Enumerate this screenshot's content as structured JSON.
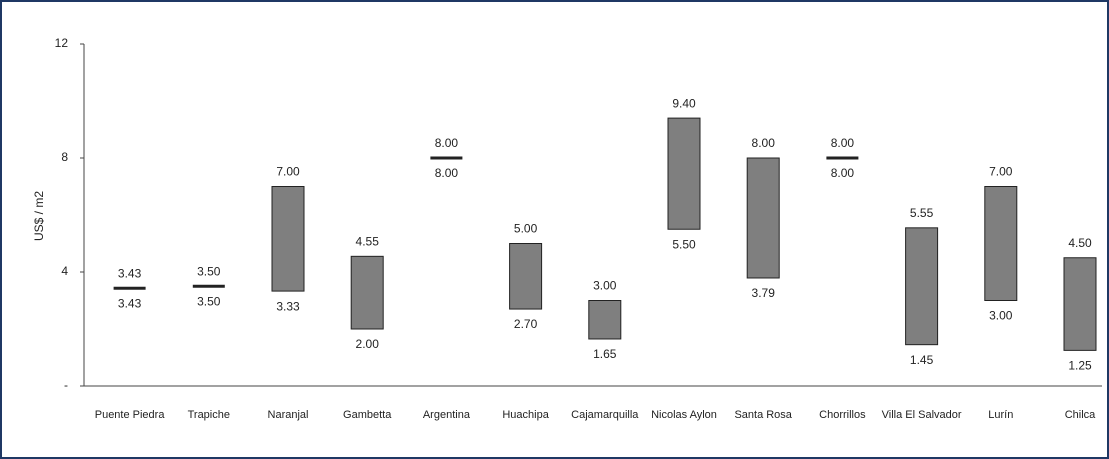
{
  "chart_data": {
    "type": "floating_bar",
    "y_label": "US$ / m2",
    "categories": [
      "Puente Piedra",
      "Trapiche",
      "Naranjal",
      "Gambetta",
      "Argentina",
      "Huachipa",
      "Cajamarquilla",
      "Nicolas Aylon",
      "Santa Rosa",
      "Chorrillos",
      "Villa El Salvador",
      "Lurín",
      "Chilca"
    ],
    "low_values": [
      3.43,
      3.5,
      3.33,
      2,
      8,
      2.7,
      1.65,
      5.5,
      3.79,
      8,
      1.45,
      3,
      1.25
    ],
    "low_labels": [
      "3.43",
      "3.50",
      "3.33",
      "2.00",
      "8.00",
      "2.70",
      "1.65",
      "5.50",
      "3.79",
      "8.00",
      "1.45",
      "3.00",
      "1.25"
    ],
    "high_values": [
      3.43,
      3.5,
      7,
      4.55,
      8,
      5,
      3,
      9.4,
      8,
      8,
      5.55,
      7,
      4.5
    ],
    "high_labels": [
      "3.43",
      "3.50",
      "7.00",
      "4.55",
      "8.00",
      "5.00",
      "3.00",
      "9.40",
      "8.00",
      "8.00",
      "5.55",
      "7.00",
      "4.50"
    ],
    "color": "#7f7f7f",
    "ylim": [
      0,
      12
    ],
    "yticks": [
      {
        "value": 0,
        "label": "-"
      },
      4,
      8,
      12
    ]
  }
}
